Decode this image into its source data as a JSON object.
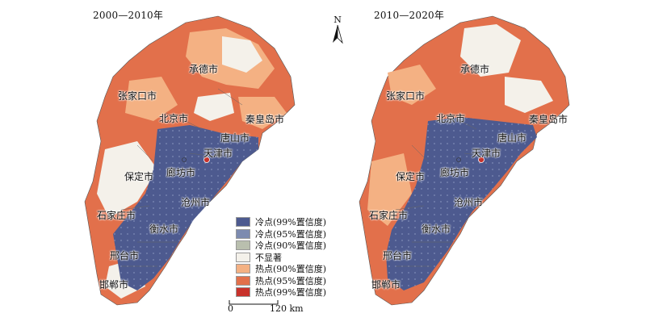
{
  "panels": [
    {
      "title": "2000—2010年",
      "cities": {
        "chengde": "承德市",
        "zhangjiakou": "张家口市",
        "beijing": "北京市",
        "qinhuangdao": "秦皇岛市",
        "tangshan": "唐山市",
        "tianjin": "天津市",
        "langfang": "廊坊市",
        "baoding": "保定市",
        "cangzhou": "沧州市",
        "shijiazhuang": "石家庄市",
        "hengshui": "衡水市",
        "xingtai": "邢台市",
        "handan": "邯郸市"
      }
    },
    {
      "title": "2010—2020年",
      "cities": {
        "chengde": "承德市",
        "zhangjiakou": "张家口市",
        "beijing": "北京市",
        "qinhuangdao": "秦皇岛市",
        "tangshan": "唐山市",
        "tianjin": "天津市",
        "langfang": "廊坊市",
        "baoding": "保定市",
        "cangzhou": "沧州市",
        "shijiazhuang": "石家庄市",
        "hengshui": "衡水市",
        "xingtai": "邢台市",
        "handan": "邯郸市"
      }
    }
  ],
  "legend": [
    {
      "label": "冷点(99%置信度)",
      "color": "#4d5a8f"
    },
    {
      "label": "冷点(95%置信度)",
      "color": "#7d8bb0"
    },
    {
      "label": "冷点(90%置信度)",
      "color": "#b9bfae"
    },
    {
      "label": "不显著",
      "color": "#f4f1ea"
    },
    {
      "label": "热点(90%置信度)",
      "color": "#f4b183"
    },
    {
      "label": "热点(95%置信度)",
      "color": "#e2704b"
    },
    {
      "label": "热点(99%置信度)",
      "color": "#c8322b"
    }
  ],
  "scale": {
    "zero": "0",
    "distance": "120 km"
  },
  "north": "N"
}
